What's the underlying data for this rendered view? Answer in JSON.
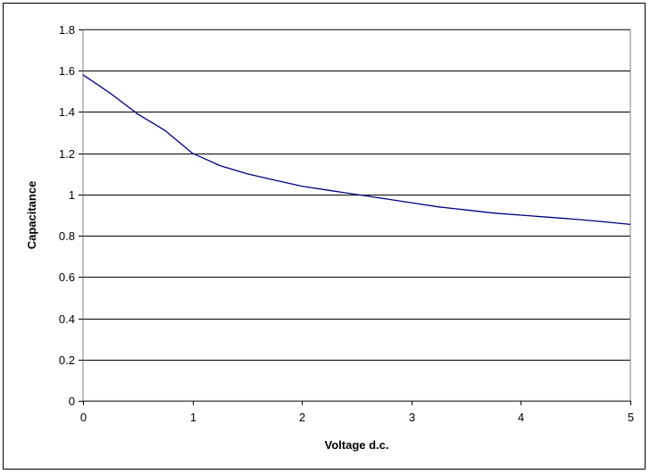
{
  "chart_data": {
    "type": "line",
    "title": "",
    "xlabel": "Voltage d.c.",
    "ylabel": "Capacitance",
    "xlim": [
      0,
      5
    ],
    "ylim": [
      0,
      1.8
    ],
    "x_ticks": [
      0,
      1,
      2,
      3,
      4,
      5
    ],
    "x_tick_labels": [
      "0",
      "1",
      "2",
      "3",
      "4",
      "5"
    ],
    "y_ticks": [
      0,
      0.2,
      0.4,
      0.6,
      0.8,
      1,
      1.2,
      1.4,
      1.6,
      1.8
    ],
    "y_tick_labels": [
      "0",
      "0.2",
      "0.4",
      "0.6",
      "0.8",
      "1",
      "1.2",
      "1.4",
      "1.6",
      "1.8"
    ],
    "grid": "horizontal",
    "legend": "none",
    "line_color": "#000080",
    "series": [
      {
        "x": [
          0,
          0.25,
          0.5,
          0.75,
          1.0,
          1.25,
          1.5,
          1.75,
          2.0,
          2.25,
          2.5,
          2.75,
          3.0,
          3.25,
          3.5,
          3.75,
          4.0,
          4.25,
          4.5,
          4.75,
          5.0
        ],
        "values": [
          1.58,
          1.49,
          1.39,
          1.31,
          1.2,
          1.14,
          1.1,
          1.07,
          1.04,
          1.02,
          1.0,
          0.98,
          0.96,
          0.94,
          0.925,
          0.91,
          0.9,
          0.89,
          0.88,
          0.868,
          0.855
        ]
      }
    ]
  }
}
